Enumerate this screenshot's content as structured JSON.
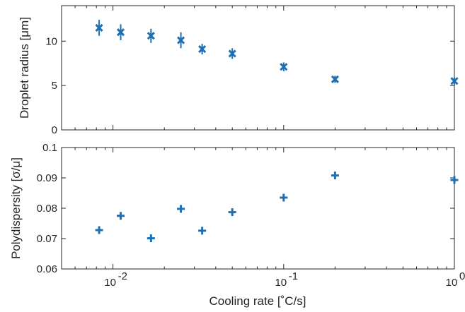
{
  "colors": {
    "marker": "#1f6fb4",
    "axis": "#262626"
  },
  "chart_data": [
    {
      "type": "scatter",
      "x_scale": "log",
      "xlim": [
        0.005,
        1
      ],
      "ylim": [
        0,
        14
      ],
      "ylabel": "Droplet radius [μm]",
      "xlabel": "",
      "marker": "x with error bars",
      "x_ticks": [
        0.01,
        0.1,
        1
      ],
      "y_ticks": [
        0,
        5,
        10
      ],
      "y_tick_labels": [
        "0",
        "5",
        "10"
      ],
      "x": [
        0.0083,
        0.0111,
        0.0167,
        0.025,
        0.0333,
        0.05,
        0.1,
        0.2,
        1
      ],
      "y": [
        11.5,
        11.0,
        10.6,
        10.1,
        9.1,
        8.6,
        7.1,
        5.7,
        5.5
      ],
      "err": [
        0.9,
        0.9,
        0.8,
        0.9,
        0.6,
        0.6,
        0.5,
        0.4,
        0.4
      ]
    },
    {
      "type": "scatter",
      "x_scale": "log",
      "xlim": [
        0.005,
        1
      ],
      "ylim": [
        0.06,
        0.1
      ],
      "ylabel": "Polydispersity [σ/μ]",
      "xlabel": "Cooling rate [˚C/s]",
      "marker": "plus",
      "x_ticks": [
        0.01,
        0.1,
        1
      ],
      "x_tick_labels": [
        [
          "10",
          "-2"
        ],
        [
          "10",
          "-1"
        ],
        [
          "10",
          "0"
        ]
      ],
      "y_ticks": [
        0.06,
        0.07,
        0.08,
        0.09,
        0.1
      ],
      "y_tick_labels": [
        "0.06",
        "0.07",
        "0.08",
        "0.09",
        "0.1"
      ],
      "x": [
        0.0083,
        0.0111,
        0.0167,
        0.025,
        0.0333,
        0.05,
        0.1,
        0.2,
        1
      ],
      "y": [
        0.0728,
        0.0775,
        0.0701,
        0.0798,
        0.0726,
        0.0787,
        0.0835,
        0.0908,
        0.0893
      ]
    }
  ]
}
